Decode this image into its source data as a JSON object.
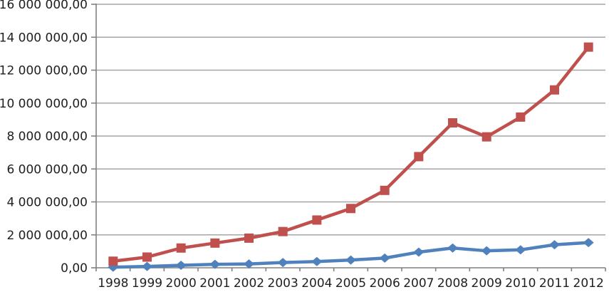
{
  "chart_data": {
    "type": "line",
    "title": "",
    "xlabel": "",
    "ylabel": "",
    "legend": "none",
    "grid": true,
    "categories": [
      "1998",
      "1999",
      "2000",
      "2001",
      "2002",
      "2003",
      "2004",
      "2005",
      "2006",
      "2007",
      "2008",
      "2009",
      "2010",
      "2011",
      "2012"
    ],
    "series": [
      {
        "name": "blue-diamond-series",
        "marker": "diamond",
        "color": "#4F81BD",
        "values": [
          40000,
          80000,
          150000,
          210000,
          230000,
          320000,
          380000,
          470000,
          590000,
          950000,
          1200000,
          1030000,
          1090000,
          1400000,
          1530000
        ]
      },
      {
        "name": "red-square-series",
        "marker": "square",
        "color": "#C0504D",
        "values": [
          400000,
          650000,
          1200000,
          1500000,
          1800000,
          2200000,
          2900000,
          3600000,
          4700000,
          6750000,
          8800000,
          7950000,
          9150000,
          10800000,
          13400000
        ]
      }
    ],
    "ylim": [
      0,
      16000000
    ],
    "y_tick_step": 2000000,
    "y_tick_labels": [
      "0,00",
      "2 000 000,00",
      "4 000 000,00",
      "6 000 000,00",
      "8 000 000,00",
      "10 000 000,00",
      "12 000 000,00",
      "14 000 000,00",
      "16 000 000,00"
    ],
    "colors": {
      "gridline": "#A6A6A6",
      "axis": "#808080",
      "tick": "#808080",
      "text": "#1f1f1f",
      "background": "#FFFFFF"
    }
  }
}
